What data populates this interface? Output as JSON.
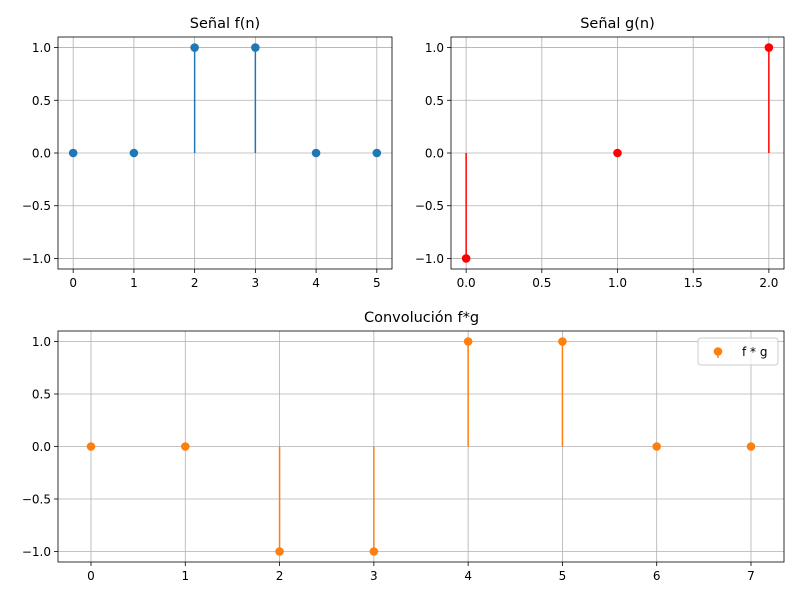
{
  "chart_data": [
    {
      "type": "stem",
      "title": "Señal f(n)",
      "x": [
        0,
        1,
        2,
        3,
        4,
        5
      ],
      "y": [
        0,
        0,
        1,
        1,
        0,
        0
      ],
      "color": "#1f77b4",
      "xlim": [
        -0.25,
        5.25
      ],
      "ylim": [
        -1.1,
        1.1
      ],
      "xticks": [
        0,
        1,
        2,
        3,
        4,
        5
      ],
      "xtick_labels": [
        "0",
        "1",
        "2",
        "3",
        "4",
        "5"
      ],
      "yticks": [
        -1.0,
        -0.5,
        0.0,
        0.5,
        1.0
      ],
      "ytick_labels": [
        "−1.0",
        "−0.5",
        "0.0",
        "0.5",
        "1.0"
      ],
      "grid": true,
      "legend": null
    },
    {
      "type": "stem",
      "title": "Señal g(n)",
      "x": [
        0,
        1,
        2
      ],
      "y": [
        -1,
        0,
        1
      ],
      "color": "#ff0000",
      "xlim": [
        -0.1,
        2.1
      ],
      "ylim": [
        -1.1,
        1.1
      ],
      "xticks": [
        0,
        0.5,
        1,
        1.5,
        2
      ],
      "xtick_labels": [
        "0.0",
        "0.5",
        "1.0",
        "1.5",
        "2.0"
      ],
      "yticks": [
        -1.0,
        -0.5,
        0.0,
        0.5,
        1.0
      ],
      "ytick_labels": [
        "−1.0",
        "−0.5",
        "0.0",
        "0.5",
        "1.0"
      ],
      "grid": true,
      "legend": null
    },
    {
      "type": "stem",
      "title": "Convolución f*g",
      "x": [
        0,
        1,
        2,
        3,
        4,
        5,
        6,
        7
      ],
      "y": [
        0,
        0,
        -1,
        -1,
        1,
        1,
        0,
        0
      ],
      "color": "#ff7f0e",
      "xlim": [
        -0.35,
        7.35
      ],
      "ylim": [
        -1.1,
        1.1
      ],
      "xticks": [
        0,
        1,
        2,
        3,
        4,
        5,
        6,
        7
      ],
      "xtick_labels": [
        "0",
        "1",
        "2",
        "3",
        "4",
        "5",
        "6",
        "7"
      ],
      "yticks": [
        -1.0,
        -0.5,
        0.0,
        0.5,
        1.0
      ],
      "ytick_labels": [
        "−1.0",
        "−0.5",
        "0.0",
        "0.5",
        "1.0"
      ],
      "grid": true,
      "legend": {
        "label": "f * g",
        "position": "upper right"
      }
    }
  ]
}
